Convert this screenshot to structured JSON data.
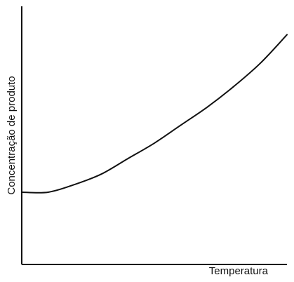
{
  "chart_data": {
    "type": "line",
    "title": "",
    "xlabel": "Temperatura",
    "ylabel": "Concentração de produto",
    "grid": false,
    "legend": "none",
    "color": "#111111",
    "series": [
      {
        "values": [
          {
            "x": 0.0,
            "y": 0.28
          },
          {
            "x": 0.1,
            "y": 0.28
          },
          {
            "x": 0.2,
            "y": 0.31
          },
          {
            "x": 0.3,
            "y": 0.35
          },
          {
            "x": 0.4,
            "y": 0.41
          },
          {
            "x": 0.5,
            "y": 0.47
          },
          {
            "x": 0.6,
            "y": 0.54
          },
          {
            "x": 0.7,
            "y": 0.61
          },
          {
            "x": 0.8,
            "y": 0.69
          },
          {
            "x": 0.9,
            "y": 0.78
          },
          {
            "x": 1.0,
            "y": 0.89
          }
        ]
      }
    ]
  }
}
